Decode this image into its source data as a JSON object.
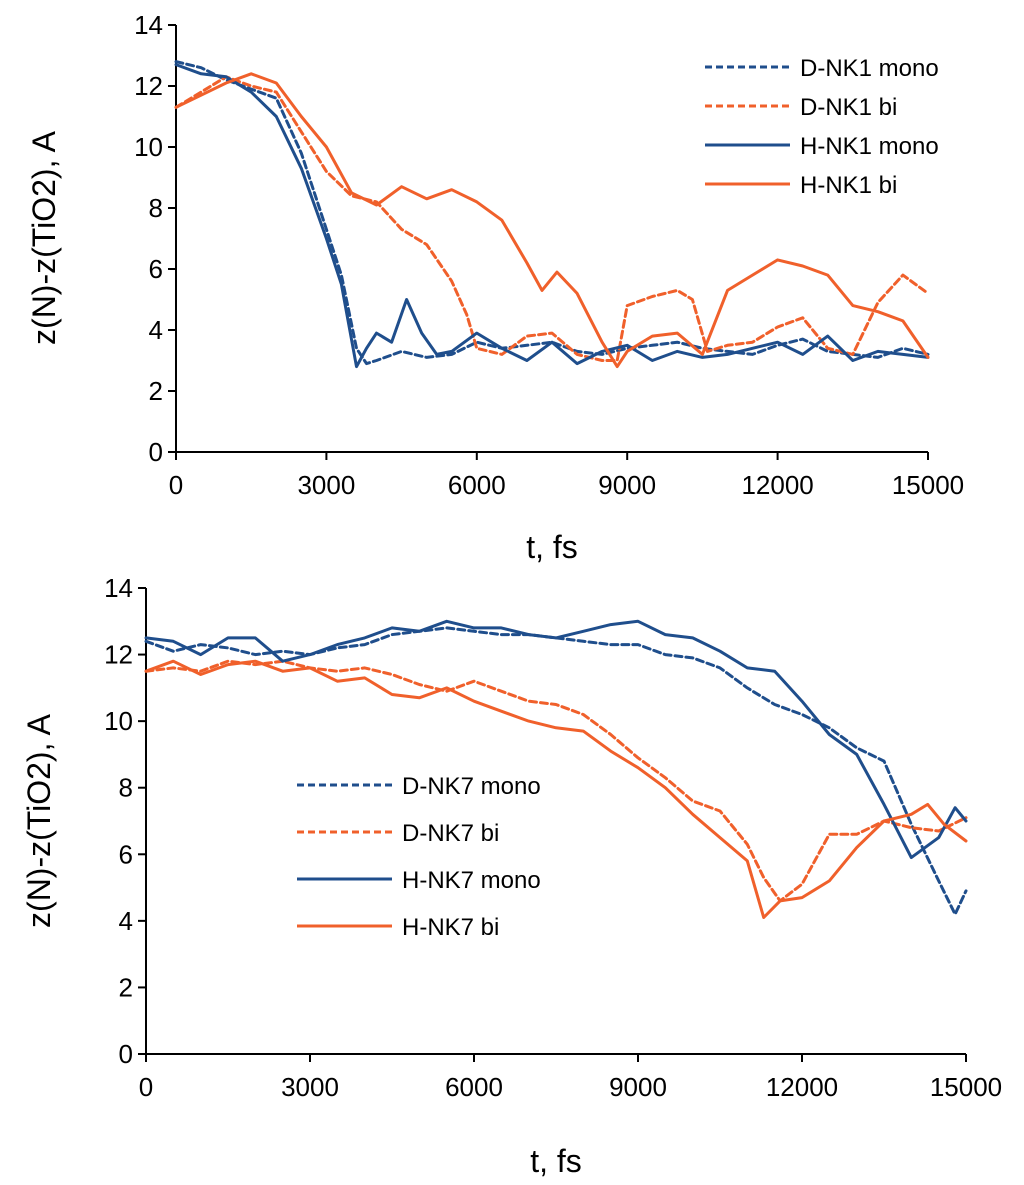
{
  "chart_data": [
    {
      "type": "line",
      "title": "",
      "xlabel": "t, fs",
      "ylabel": "z(N)-z(TiO2), A",
      "xlim": [
        0,
        15000
      ],
      "ylim": [
        0,
        14
      ],
      "xticks": [
        0,
        3000,
        6000,
        9000,
        12000,
        15000
      ],
      "yticks": [
        0,
        2,
        4,
        6,
        8,
        10,
        12,
        14
      ],
      "grid": false,
      "legend_position": "top-right",
      "series": [
        {
          "name": "D-NK1 mono",
          "color": "#1f4e8c",
          "style": "dashed",
          "x": [
            0,
            500,
            1000,
            1500,
            2000,
            2500,
            3000,
            3300,
            3600,
            3800,
            4000,
            4500,
            5000,
            5500,
            6000,
            6500,
            7000,
            7500,
            8000,
            8500,
            9000,
            9500,
            10000,
            10500,
            11000,
            11500,
            12000,
            12500,
            13000,
            13500,
            14000,
            14500,
            15000
          ],
          "y": [
            12.8,
            12.6,
            12.2,
            11.9,
            11.6,
            9.8,
            7.3,
            5.8,
            3.4,
            2.9,
            3.0,
            3.3,
            3.1,
            3.2,
            3.6,
            3.4,
            3.5,
            3.6,
            3.3,
            3.2,
            3.4,
            3.5,
            3.6,
            3.4,
            3.3,
            3.2,
            3.5,
            3.7,
            3.3,
            3.2,
            3.1,
            3.4,
            3.2
          ]
        },
        {
          "name": "D-NK1 bi",
          "color": "#f0602b",
          "style": "dashed",
          "x": [
            0,
            500,
            1000,
            1500,
            2000,
            2500,
            3000,
            3500,
            4000,
            4500,
            5000,
            5500,
            5800,
            6000,
            6500,
            7000,
            7500,
            8000,
            8500,
            8800,
            9000,
            9500,
            10000,
            10300,
            10600,
            11000,
            11500,
            12000,
            12500,
            13000,
            13500,
            14000,
            14500,
            15000
          ],
          "y": [
            11.3,
            11.8,
            12.3,
            12.0,
            11.8,
            10.5,
            9.2,
            8.4,
            8.2,
            7.3,
            6.8,
            5.6,
            4.5,
            3.4,
            3.2,
            3.8,
            3.9,
            3.2,
            3.0,
            3.0,
            4.8,
            5.1,
            5.3,
            5.0,
            3.3,
            3.5,
            3.6,
            4.1,
            4.4,
            3.4,
            3.2,
            4.9,
            5.8,
            5.2
          ]
        },
        {
          "name": "H-NK1 mono",
          "color": "#1f4e8c",
          "style": "solid",
          "x": [
            0,
            500,
            1000,
            1500,
            2000,
            2500,
            3000,
            3300,
            3600,
            3800,
            4000,
            4300,
            4600,
            4900,
            5200,
            5500,
            6000,
            6500,
            7000,
            7500,
            8000,
            8500,
            9000,
            9500,
            10000,
            10500,
            11000,
            11500,
            12000,
            12500,
            13000,
            13500,
            14000,
            14500,
            15000
          ],
          "y": [
            12.7,
            12.4,
            12.3,
            11.8,
            11.0,
            9.3,
            7.0,
            5.5,
            2.8,
            3.4,
            3.9,
            3.6,
            5.0,
            3.9,
            3.2,
            3.3,
            3.9,
            3.4,
            3.0,
            3.6,
            2.9,
            3.3,
            3.5,
            3.0,
            3.3,
            3.1,
            3.2,
            3.4,
            3.6,
            3.2,
            3.8,
            3.0,
            3.3,
            3.2,
            3.1
          ]
        },
        {
          "name": "H-NK1 bi",
          "color": "#f0602b",
          "style": "solid",
          "x": [
            0,
            500,
            1000,
            1500,
            2000,
            2500,
            3000,
            3500,
            4000,
            4500,
            5000,
            5500,
            6000,
            6500,
            7000,
            7300,
            7600,
            8000,
            8500,
            8800,
            9000,
            9500,
            10000,
            10500,
            11000,
            11500,
            12000,
            12500,
            13000,
            13500,
            14000,
            14500,
            15000
          ],
          "y": [
            11.3,
            11.7,
            12.1,
            12.4,
            12.1,
            11.0,
            10.0,
            8.5,
            8.1,
            8.7,
            8.3,
            8.6,
            8.2,
            7.6,
            6.2,
            5.3,
            5.9,
            5.2,
            3.6,
            2.8,
            3.3,
            3.8,
            3.9,
            3.2,
            5.3,
            5.8,
            6.3,
            6.1,
            5.8,
            4.8,
            4.6,
            4.3,
            3.1
          ]
        }
      ]
    },
    {
      "type": "line",
      "title": "",
      "xlabel": "t, fs",
      "ylabel": "z(N)-z(TiO2), A",
      "xlim": [
        0,
        15000
      ],
      "ylim": [
        0,
        14
      ],
      "xticks": [
        0,
        3000,
        6000,
        9000,
        12000,
        15000
      ],
      "yticks": [
        0,
        2,
        4,
        6,
        8,
        10,
        12,
        14
      ],
      "grid": false,
      "legend_position": "center-left",
      "series": [
        {
          "name": "D-NK7 mono",
          "color": "#1f4e8c",
          "style": "dashed",
          "x": [
            0,
            500,
            1000,
            1500,
            2000,
            2500,
            3000,
            3500,
            4000,
            4500,
            5000,
            5500,
            6000,
            6500,
            7000,
            7500,
            8000,
            8500,
            9000,
            9500,
            10000,
            10500,
            11000,
            11500,
            12000,
            12500,
            13000,
            13500,
            14000,
            14500,
            14800,
            15000
          ],
          "y": [
            12.4,
            12.1,
            12.3,
            12.2,
            12.0,
            12.1,
            12.0,
            12.2,
            12.3,
            12.6,
            12.7,
            12.8,
            12.7,
            12.6,
            12.6,
            12.5,
            12.4,
            12.3,
            12.3,
            12.0,
            11.9,
            11.6,
            11.0,
            10.5,
            10.2,
            9.8,
            9.2,
            8.8,
            6.9,
            5.2,
            4.2,
            4.9
          ]
        },
        {
          "name": "D-NK7 bi",
          "color": "#f0602b",
          "style": "dashed",
          "x": [
            0,
            500,
            1000,
            1500,
            2000,
            2500,
            3000,
            3500,
            4000,
            4500,
            5000,
            5500,
            6000,
            6500,
            7000,
            7500,
            8000,
            8500,
            9000,
            9500,
            10000,
            10500,
            11000,
            11300,
            11600,
            12000,
            12500,
            13000,
            13500,
            14000,
            14500,
            15000
          ],
          "y": [
            11.5,
            11.6,
            11.5,
            11.8,
            11.7,
            11.8,
            11.6,
            11.5,
            11.6,
            11.4,
            11.1,
            10.9,
            11.2,
            10.9,
            10.6,
            10.5,
            10.2,
            9.6,
            8.9,
            8.3,
            7.6,
            7.3,
            6.3,
            5.3,
            4.6,
            5.1,
            6.6,
            6.6,
            7.0,
            6.8,
            6.7,
            7.1
          ]
        },
        {
          "name": "H-NK7 mono",
          "color": "#1f4e8c",
          "style": "solid",
          "x": [
            0,
            500,
            1000,
            1500,
            2000,
            2500,
            3000,
            3500,
            4000,
            4500,
            5000,
            5500,
            6000,
            6500,
            7000,
            7500,
            8000,
            8500,
            9000,
            9500,
            10000,
            10500,
            11000,
            11500,
            12000,
            12500,
            13000,
            13500,
            14000,
            14500,
            14800,
            15000
          ],
          "y": [
            12.5,
            12.4,
            12.0,
            12.5,
            12.5,
            11.8,
            12.0,
            12.3,
            12.5,
            12.8,
            12.7,
            13.0,
            12.8,
            12.8,
            12.6,
            12.5,
            12.7,
            12.9,
            13.0,
            12.6,
            12.5,
            12.1,
            11.6,
            11.5,
            10.6,
            9.6,
            9.0,
            7.5,
            5.9,
            6.5,
            7.4,
            7.0
          ]
        },
        {
          "name": "H-NK7 bi",
          "color": "#f0602b",
          "style": "solid",
          "x": [
            0,
            500,
            1000,
            1500,
            2000,
            2500,
            3000,
            3500,
            4000,
            4500,
            5000,
            5500,
            6000,
            6500,
            7000,
            7500,
            8000,
            8500,
            9000,
            9500,
            10000,
            10500,
            11000,
            11300,
            11600,
            12000,
            12500,
            13000,
            13500,
            14000,
            14300,
            14600,
            15000
          ],
          "y": [
            11.5,
            11.8,
            11.4,
            11.7,
            11.8,
            11.5,
            11.6,
            11.2,
            11.3,
            10.8,
            10.7,
            11.0,
            10.6,
            10.3,
            10.0,
            9.8,
            9.7,
            9.1,
            8.6,
            8.0,
            7.2,
            6.5,
            5.8,
            4.1,
            4.6,
            4.7,
            5.2,
            6.2,
            7.0,
            7.2,
            7.5,
            6.9,
            6.4
          ]
        }
      ]
    }
  ]
}
